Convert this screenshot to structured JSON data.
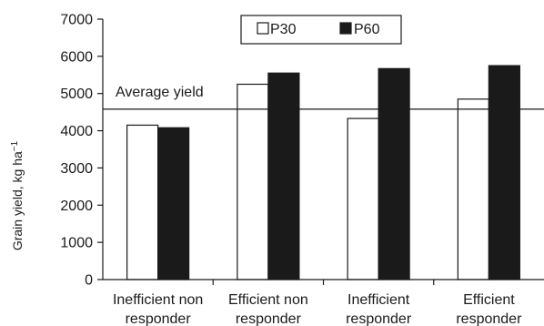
{
  "chart_data": {
    "type": "bar",
    "categories": [
      [
        "Inefficient non",
        "responder"
      ],
      [
        "Efficient non",
        "responder"
      ],
      [
        "Inefficient",
        "responder"
      ],
      [
        "Efficient",
        "responder"
      ]
    ],
    "series": [
      {
        "name": "P30",
        "values": [
          4150,
          5250,
          4330,
          4850
        ],
        "color": "#ffffff"
      },
      {
        "name": "P60",
        "values": [
          4080,
          5550,
          5670,
          5750
        ],
        "color": "#1a1a1a"
      }
    ],
    "ylabel": "Grain yield, kg ha",
    "ylabel_sup": "−1",
    "ylim": [
      0,
      7000
    ],
    "yticks": [
      0,
      1000,
      2000,
      3000,
      4000,
      5000,
      6000,
      7000
    ],
    "reference_line": {
      "label": "Average yield",
      "value": 4580
    },
    "legend_position": "top-center",
    "grid": false
  }
}
